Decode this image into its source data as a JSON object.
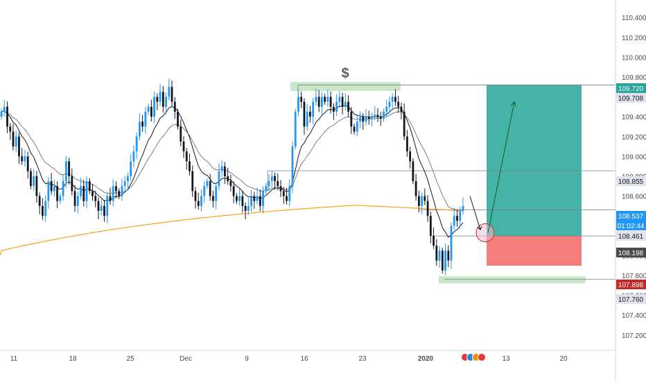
{
  "colors": {
    "bull": "#2196f3",
    "bear": "#131722",
    "ema_fast": "#131722",
    "ema_slow": "#5d606b",
    "ma_long": "#ff9800",
    "target_zone": "#26a69a",
    "stop_zone": "#ef5350",
    "supply_zone": "#b7dfb3",
    "axis_text": "#4a4a4a",
    "guide_line": "#787b86"
  },
  "chart_data": {
    "type": "candlestick",
    "instrument_note": "",
    "annotation_symbol": "$",
    "y_axis": {
      "ylim": [
        107.08,
        110.52
      ],
      "ticks": [
        "110.400",
        "110.200",
        "110.000",
        "109.800",
        "109.600",
        "109.400",
        "109.200",
        "109.000",
        "108.800",
        "108.600",
        "108.400",
        "108.200",
        "108.000",
        "107.800",
        "107.600",
        "107.400",
        "107.200"
      ]
    },
    "x_axis": {
      "ticks": [
        "11",
        "18",
        "25",
        "Dec",
        "9",
        "16",
        "23",
        "2020",
        "13",
        "20"
      ],
      "bold_ticks": [
        "2020"
      ]
    },
    "price_labels": [
      {
        "value": "109.720",
        "style": "target"
      },
      {
        "value": "109.708",
        "style": "plain"
      },
      {
        "value": "108.855",
        "style": "plain"
      },
      {
        "value": "108.537",
        "style": "current"
      },
      {
        "value": "01:02:44",
        "style": "countdown"
      },
      {
        "value": "108.461",
        "style": "plain"
      },
      {
        "value": "108.198",
        "style": "entry"
      },
      {
        "value": "107.898",
        "style": "stop"
      },
      {
        "value": "107.760",
        "style": "plain"
      }
    ],
    "long_position": {
      "entry": 108.198,
      "target": 109.72,
      "stop": 107.898
    },
    "zones": [
      {
        "kind": "supply",
        "from": 109.66,
        "to": 109.75
      },
      {
        "kind": "demand",
        "from": 107.72,
        "to": 107.79
      }
    ],
    "candles_close": [
      109.45,
      109.5,
      109.3,
      109.25,
      109.1,
      109.2,
      109.0,
      108.95,
      109.0,
      108.85,
      108.7,
      108.8,
      108.6,
      108.5,
      108.4,
      108.55,
      108.75,
      108.65,
      108.7,
      108.55,
      108.6,
      108.75,
      108.95,
      108.8,
      108.65,
      108.5,
      108.6,
      108.7,
      108.55,
      108.75,
      108.65,
      108.6,
      108.55,
      108.45,
      108.5,
      108.4,
      108.6,
      108.55,
      108.7,
      108.65,
      108.6,
      108.7,
      108.75,
      108.8,
      108.95,
      109.05,
      109.2,
      109.35,
      109.3,
      109.45,
      109.5,
      109.4,
      109.6,
      109.55,
      109.65,
      109.5,
      109.6,
      109.7,
      109.55,
      109.45,
      109.3,
      109.15,
      109.05,
      108.95,
      108.85,
      108.65,
      108.55,
      108.5,
      108.6,
      108.7,
      108.75,
      108.6,
      108.55,
      108.7,
      108.85,
      108.9,
      108.8,
      108.75,
      108.7,
      108.6,
      108.55,
      108.6,
      108.5,
      108.45,
      108.5,
      108.6,
      108.55,
      108.6,
      108.5,
      108.65,
      108.7,
      108.75,
      108.8,
      108.75,
      108.7,
      108.65,
      108.6,
      108.55,
      108.7,
      109.1,
      109.45,
      109.6,
      109.55,
      109.3,
      109.45,
      109.4,
      109.55,
      109.6,
      109.5,
      109.6,
      109.55,
      109.6,
      109.5,
      109.45,
      109.55,
      109.6,
      109.5,
      109.55,
      109.45,
      109.3,
      109.25,
      109.35,
      109.4,
      109.35,
      109.4,
      109.38,
      109.4,
      109.42,
      109.4,
      109.38,
      109.45,
      109.5,
      109.55,
      109.6,
      109.55,
      109.5,
      109.45,
      109.2,
      109.05,
      108.95,
      108.75,
      108.6,
      108.5,
      108.6,
      108.55,
      108.4,
      108.2,
      108.1,
      107.95,
      108.05,
      107.85,
      108.05,
      107.95,
      108.3,
      108.4,
      108.35,
      108.45,
      108.5
    ]
  }
}
